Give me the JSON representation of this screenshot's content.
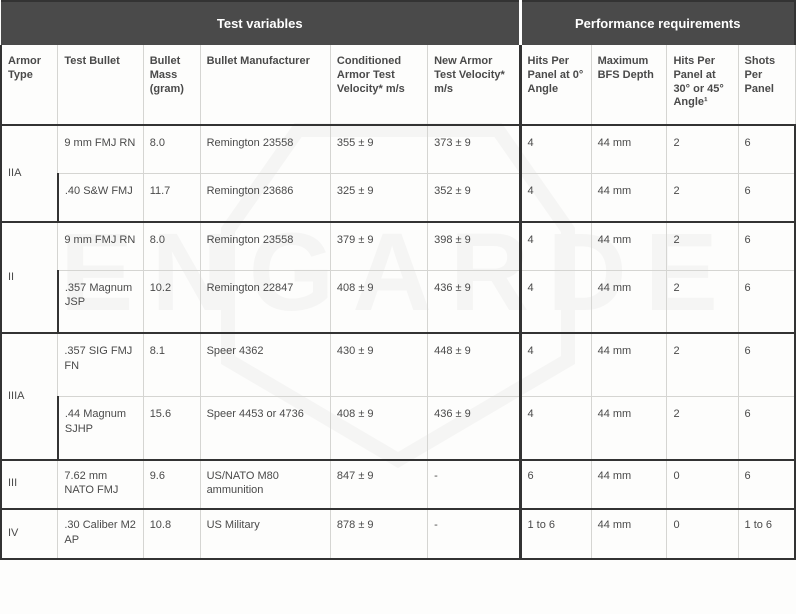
{
  "sections": {
    "left": "Test variables",
    "right": "Performance requirements"
  },
  "columns": {
    "armor_type": "Armor Type",
    "test_bullet": "Test Bullet",
    "bullet_mass": "Bullet Mass (gram)",
    "manufacturer": "Bullet Manufacturer",
    "cond_velocity": "Conditioned Armor Test Velocity* m/s",
    "new_velocity": "New Armor Test Velocity* m/s",
    "hits_0": "Hits Per Panel at 0° Angle",
    "bfs": "Maximum BFS Depth",
    "hits_30_45": "Hits Per Panel at 30° or 45° Angle¹",
    "shots": "Shots Per Panel"
  },
  "groups": [
    {
      "armor_type": "IIA",
      "rows": [
        {
          "bullet": "9 mm FMJ RN",
          "mass": "8.0",
          "manu": "Remington 23558",
          "cond": "355 ± 9",
          "newv": "373 ± 9",
          "hits0": "4",
          "bfs": "44 mm",
          "hits3045": "2",
          "shots": "6"
        },
        {
          "bullet": ".40 S&W FMJ",
          "mass": "11.7",
          "manu": "Remington 23686",
          "cond": "325 ± 9",
          "newv": "352 ± 9",
          "hits0": "4",
          "bfs": "44 mm",
          "hits3045": "2",
          "shots": "6"
        }
      ]
    },
    {
      "armor_type": "II",
      "rows": [
        {
          "bullet": "9 mm FMJ RN",
          "mass": "8.0",
          "manu": "Remington 23558",
          "cond": "379 ± 9",
          "newv": "398 ± 9",
          "hits0": "4",
          "bfs": "44 mm",
          "hits3045": "2",
          "shots": "6"
        },
        {
          "bullet": ".357 Magnum JSP",
          "mass": "10.2",
          "manu": "Remington 22847",
          "cond": "408 ± 9",
          "newv": "436 ± 9",
          "hits0": "4",
          "bfs": "44 mm",
          "hits3045": "2",
          "shots": "6"
        }
      ]
    },
    {
      "armor_type": "IIIA",
      "rows": [
        {
          "bullet": ".357 SIG FMJ FN",
          "mass": "8.1",
          "manu": "Speer 4362",
          "cond": "430 ± 9",
          "newv": "448 ± 9",
          "hits0": "4",
          "bfs": "44 mm",
          "hits3045": "2",
          "shots": "6"
        },
        {
          "bullet": ".44 Magnum SJHP",
          "mass": "15.6",
          "manu": "Speer 4453 or 4736",
          "cond": "408 ± 9",
          "newv": "436 ± 9",
          "hits0": "4",
          "bfs": "44 mm",
          "hits3045": "2",
          "shots": "6"
        }
      ]
    },
    {
      "armor_type": "III",
      "rows": [
        {
          "bullet": "7.62 mm NATO FMJ",
          "mass": "9.6",
          "manu": "US/NATO M80 ammunition",
          "cond": "847 ± 9",
          "newv": "-",
          "hits0": "6",
          "bfs": "44 mm",
          "hits3045": "0",
          "shots": "6"
        }
      ],
      "tight": true
    },
    {
      "armor_type": "IV",
      "rows": [
        {
          "bullet": ".30 Caliber M2 AP",
          "mass": "10.8",
          "manu": "US Military",
          "cond": "878 ± 9",
          "newv": "-",
          "hits0": "1 to 6",
          "bfs": "44 mm",
          "hits3045": "0",
          "shots": "1 to 6"
        }
      ],
      "tight": true
    }
  ],
  "watermark_text": "ENGARDE",
  "colors": {
    "header_bg": "#4a4a4a",
    "border_dark": "#333333",
    "border_light": "#d5d5d2",
    "text": "#4a4a4a"
  }
}
